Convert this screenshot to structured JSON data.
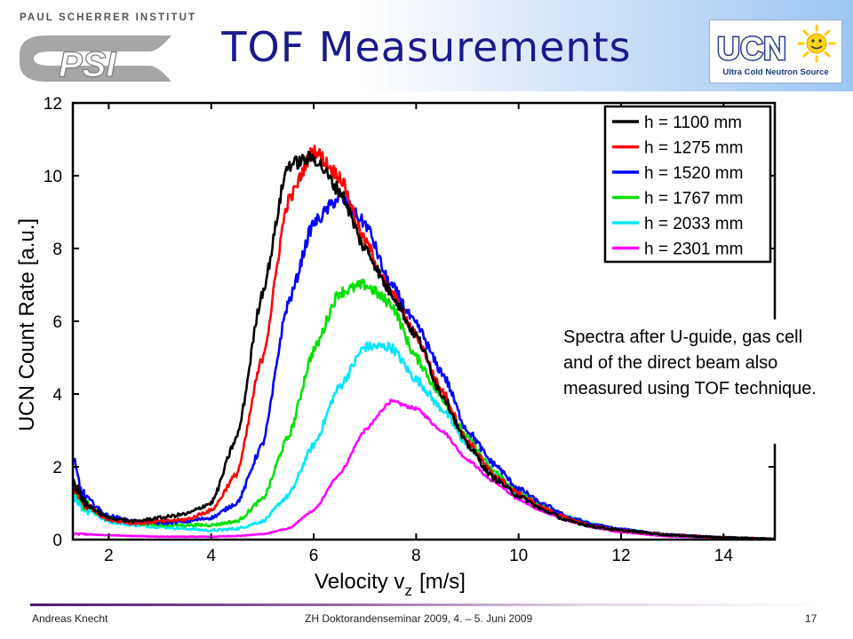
{
  "slide": {
    "title": "TOF Measurements",
    "psi_logo_text": "PAUL SCHERRER INSTITUT",
    "psi_logo_mark": "PSI",
    "ucn_logo_mark": "UCN",
    "ucn_logo_text": "Ultra Cold Neutron Source",
    "note": "Spectra after U-guide, gas cell and of the direct beam also measured using TOF technique.",
    "footer": {
      "author": "Andreas Knecht",
      "event": "ZH Doktorandenseminar 2009, 4. – 5. Juni 2009",
      "page": "17"
    }
  },
  "chart_data": {
    "type": "line",
    "xlabel": "Velocity v",
    "xlabel_subscript": "z",
    "xlabel_unit": "[m/s]",
    "ylabel": "UCN Count Rate [a.u.]",
    "xlim": [
      1.3,
      15
    ],
    "ylim": [
      0,
      12
    ],
    "xticks": [
      2,
      4,
      6,
      8,
      10,
      12,
      14
    ],
    "yticks": [
      0,
      2,
      4,
      6,
      8,
      10,
      12
    ],
    "legend_position": "top-right",
    "x": [
      1.3,
      1.5,
      2.0,
      2.5,
      3.0,
      3.5,
      4.0,
      4.5,
      5.0,
      5.5,
      6.0,
      6.5,
      7.0,
      7.5,
      8.0,
      8.5,
      9.0,
      9.5,
      10.0,
      10.5,
      11.0,
      11.5,
      12.0,
      13.0,
      14.0,
      15.0
    ],
    "series": [
      {
        "name": "h = 1100 mm",
        "color": "#000000",
        "values": [
          1.6,
          1.0,
          0.6,
          0.5,
          0.6,
          0.7,
          1.0,
          2.8,
          6.8,
          10.3,
          10.5,
          9.6,
          8.0,
          6.8,
          5.6,
          4.0,
          2.6,
          1.7,
          1.2,
          0.8,
          0.5,
          0.35,
          0.25,
          0.12,
          0.06,
          0.02
        ]
      },
      {
        "name": "h = 1275 mm",
        "color": "#ff0000",
        "values": [
          1.5,
          1.0,
          0.55,
          0.45,
          0.5,
          0.55,
          0.8,
          1.8,
          5.0,
          9.3,
          10.7,
          10.0,
          8.2,
          6.8,
          5.6,
          4.1,
          2.7,
          1.8,
          1.25,
          0.85,
          0.55,
          0.35,
          0.25,
          0.12,
          0.06,
          0.02
        ]
      },
      {
        "name": "h = 1520 mm",
        "color": "#0000ff",
        "values": [
          2.1,
          1.2,
          0.65,
          0.5,
          0.45,
          0.5,
          0.6,
          1.0,
          2.6,
          6.5,
          8.7,
          9.4,
          8.7,
          7.0,
          5.9,
          4.6,
          3.0,
          2.1,
          1.4,
          0.95,
          0.6,
          0.4,
          0.28,
          0.13,
          0.06,
          0.02
        ]
      },
      {
        "name": "h = 1767 mm",
        "color": "#00e000",
        "values": [
          1.5,
          1.0,
          0.55,
          0.45,
          0.4,
          0.4,
          0.4,
          0.5,
          1.1,
          2.8,
          5.2,
          6.8,
          7.0,
          6.5,
          5.0,
          3.9,
          2.8,
          1.9,
          1.3,
          0.9,
          0.6,
          0.4,
          0.27,
          0.12,
          0.06,
          0.02
        ]
      },
      {
        "name": "h = 2033 mm",
        "color": "#00e6ff",
        "values": [
          1.3,
          0.9,
          0.5,
          0.4,
          0.35,
          0.3,
          0.25,
          0.3,
          0.5,
          1.2,
          2.6,
          4.2,
          5.3,
          5.3,
          4.4,
          3.6,
          2.6,
          1.8,
          1.25,
          0.85,
          0.6,
          0.4,
          0.27,
          0.12,
          0.05,
          0.02
        ]
      },
      {
        "name": "h = 2301 mm",
        "color": "#ff00ff",
        "values": [
          0.15,
          0.15,
          0.12,
          0.1,
          0.08,
          0.08,
          0.08,
          0.1,
          0.15,
          0.3,
          0.8,
          1.8,
          3.0,
          3.8,
          3.6,
          3.0,
          2.2,
          1.6,
          1.1,
          0.75,
          0.5,
          0.32,
          0.2,
          0.08,
          0.04,
          0.02
        ]
      }
    ]
  }
}
